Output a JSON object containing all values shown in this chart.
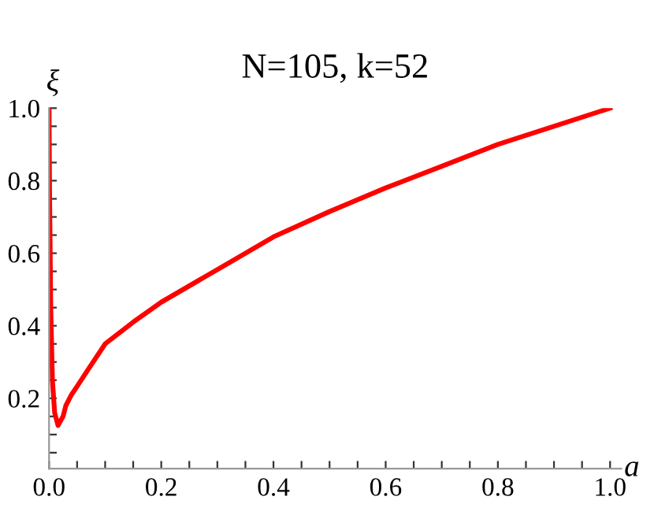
{
  "chart_data": {
    "type": "line",
    "title": "N=105, k=52",
    "xlabel": "a",
    "ylabel": "ξ",
    "xlim": [
      0,
      1.02
    ],
    "ylim": [
      0.006,
      1.0
    ],
    "xticks": [
      {
        "value": 0,
        "label": "0.0"
      },
      {
        "value": 0.05,
        "label": null
      },
      {
        "value": 0.1,
        "label": null
      },
      {
        "value": 0.15,
        "label": null
      },
      0.2,
      {
        "value": 0.25,
        "label": null
      },
      {
        "value": 0.3,
        "label": null
      },
      {
        "value": 0.35,
        "label": null
      },
      0.4,
      {
        "value": 0.45,
        "label": null
      },
      {
        "value": 0.5,
        "label": null
      },
      {
        "value": 0.55,
        "label": null
      },
      0.6,
      {
        "value": 0.65,
        "label": null
      },
      {
        "value": 0.7,
        "label": null
      },
      {
        "value": 0.75,
        "label": null
      },
      0.8,
      {
        "value": 0.85,
        "label": null
      },
      {
        "value": 0.9,
        "label": null
      },
      {
        "value": 0.95,
        "label": null
      },
      {
        "value": 1.0,
        "label": "1.0"
      }
    ],
    "yticks": [
      {
        "value": 0.05,
        "label": null
      },
      {
        "value": 0.1,
        "label": null
      },
      {
        "value": 0.15,
        "label": null
      },
      0.2,
      {
        "value": 0.25,
        "label": null
      },
      {
        "value": 0.3,
        "label": null
      },
      {
        "value": 0.35,
        "label": null
      },
      0.4,
      {
        "value": 0.45,
        "label": null
      },
      {
        "value": 0.5,
        "label": null
      },
      {
        "value": 0.55,
        "label": null
      },
      0.6,
      {
        "value": 0.65,
        "label": null
      },
      {
        "value": 0.7,
        "label": null
      },
      {
        "value": 0.75,
        "label": null
      },
      0.8,
      {
        "value": 0.85,
        "label": null
      },
      {
        "value": 0.9,
        "label": null
      },
      {
        "value": 0.95,
        "label": null
      },
      {
        "value": 1.0,
        "label": "1.0"
      }
    ],
    "series": [
      {
        "color": "#ff0000",
        "x": [
          0,
          0.001,
          0.003,
          0.006,
          0.01,
          0.016,
          0.025,
          0.03,
          0.04,
          0.05,
          0.07,
          0.1,
          0.15,
          0.2,
          0.3,
          0.4,
          0.5,
          0.6,
          0.7,
          0.8,
          0.9,
          1.0
        ],
        "values": [
          1.0,
          0.75,
          0.45,
          0.25,
          0.16,
          0.125,
          0.15,
          0.18,
          0.21,
          0.233,
          0.28,
          0.35,
          0.41,
          0.465,
          0.555,
          0.645,
          0.715,
          0.78,
          0.84,
          0.9,
          0.95,
          1.0
        ]
      }
    ]
  }
}
